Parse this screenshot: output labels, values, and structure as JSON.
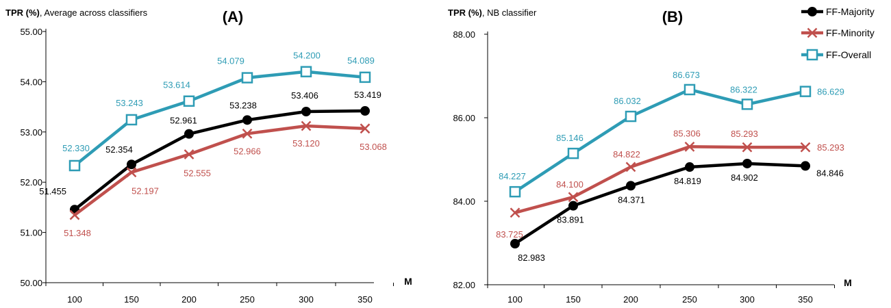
{
  "chart_data": [
    {
      "type": "line",
      "panel_title": "(A)",
      "ylabel_bold": "TPR (%)",
      "ylabel_rest": ", Average across classifiers",
      "xlabel": "M",
      "categories": [
        "100",
        "150",
        "200",
        "250",
        "300",
        "350"
      ],
      "ylim": [
        50,
        55
      ],
      "yticks": [
        "50.00",
        "51.00",
        "52.00",
        "53.00",
        "54.00",
        "55.00"
      ],
      "series": [
        {
          "name": "FF-Majority",
          "color": "#000000",
          "marker": "dot",
          "values": [
            51.455,
            52.354,
            52.961,
            53.238,
            53.406,
            53.419
          ],
          "labels": [
            "51.455",
            "52.354",
            "52.961",
            "53.238",
            "53.406",
            "53.419"
          ]
        },
        {
          "name": "FF-Minority",
          "color": "#c0504d",
          "marker": "x",
          "values": [
            51.348,
            52.197,
            52.555,
            52.966,
            53.12,
            53.068
          ],
          "labels": [
            "51.348",
            "52.197",
            "52.555",
            "52.966",
            "53.120",
            "53.068"
          ]
        },
        {
          "name": "FF-Overall",
          "color": "#2e9cb5",
          "marker": "square",
          "values": [
            52.33,
            53.243,
            53.614,
            54.079,
            54.2,
            54.089
          ],
          "labels": [
            "52.330",
            "53.243",
            "53.614",
            "54.079",
            "54.200",
            "54.089"
          ]
        }
      ]
    },
    {
      "type": "line",
      "panel_title": "(B)",
      "ylabel_bold": "TPR (%)",
      "ylabel_rest": ", NB classifier",
      "xlabel": "M",
      "categories": [
        "100",
        "150",
        "200",
        "250",
        "300",
        "350"
      ],
      "ylim": [
        82,
        88
      ],
      "yticks": [
        "82.00",
        "84.00",
        "86.00",
        "88.00"
      ],
      "series": [
        {
          "name": "FF-Majority",
          "color": "#000000",
          "marker": "dot",
          "values": [
            82.983,
            83.891,
            84.371,
            84.819,
            84.902,
            84.846
          ],
          "labels": [
            "82.983",
            "83.891",
            "84.371",
            "84.819",
            "84.902",
            "84.846"
          ]
        },
        {
          "name": "FF-Minority",
          "color": "#c0504d",
          "marker": "x",
          "values": [
            83.725,
            84.1,
            84.822,
            85.306,
            85.293,
            85.293
          ],
          "labels": [
            "83.725",
            "84.100",
            "84.822",
            "85.306",
            "85.293",
            "85.293"
          ]
        },
        {
          "name": "FF-Overall",
          "color": "#2e9cb5",
          "marker": "square",
          "values": [
            84.227,
            85.146,
            86.032,
            86.673,
            86.322,
            86.629
          ],
          "labels": [
            "84.227",
            "85.146",
            "86.032",
            "86.673",
            "86.322",
            "86.629"
          ]
        }
      ],
      "legend": {
        "placement": "top-right",
        "entries": [
          "FF-Majority",
          "FF-Minority",
          "FF-Overall"
        ]
      }
    }
  ]
}
